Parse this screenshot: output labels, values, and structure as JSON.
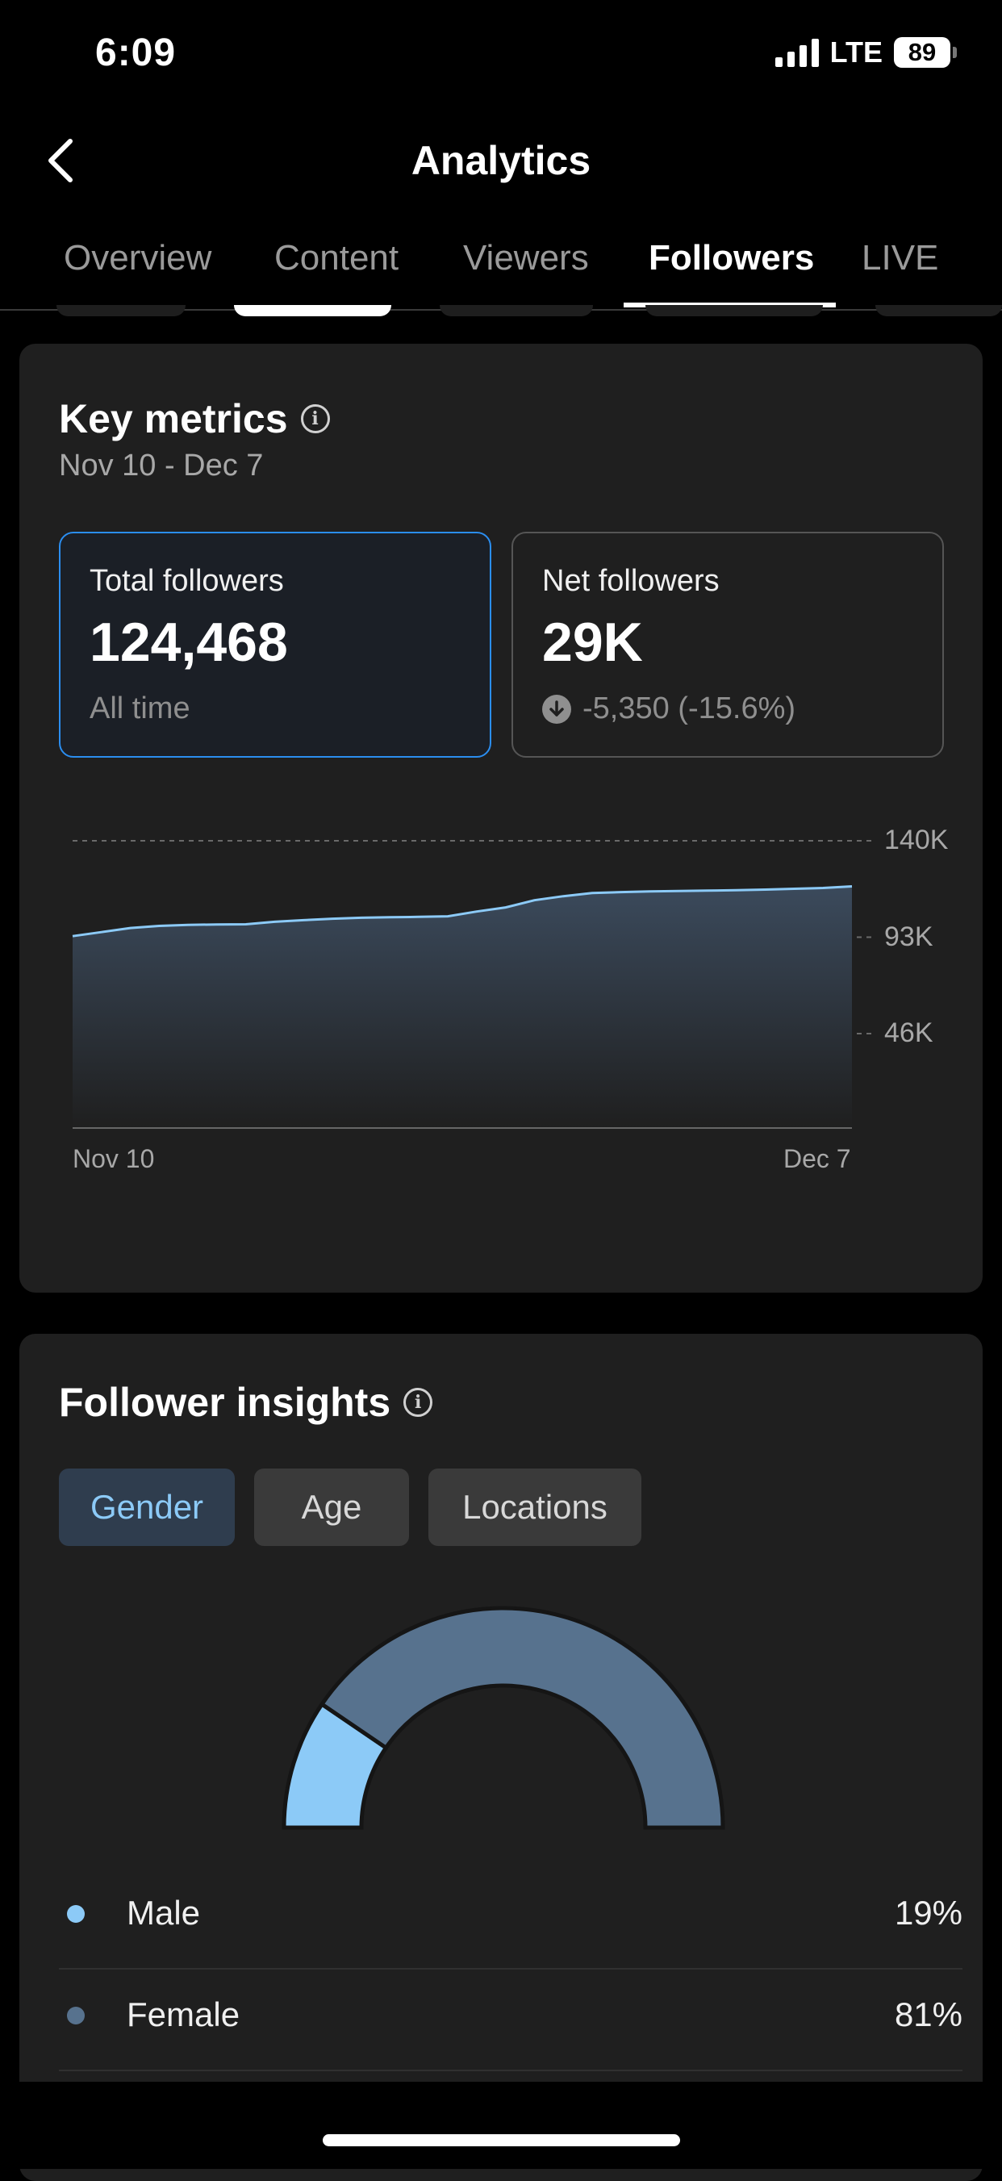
{
  "status_bar": {
    "time": "6:09",
    "network": "LTE",
    "battery": "89"
  },
  "header": {
    "title": "Analytics"
  },
  "tabs": [
    {
      "label": "Overview",
      "active": false
    },
    {
      "label": "Content",
      "active": false
    },
    {
      "label": "Viewers",
      "active": false
    },
    {
      "label": "Followers",
      "active": true
    },
    {
      "label": "LIVE",
      "active": false
    }
  ],
  "key_metrics": {
    "title": "Key metrics",
    "date_range": "Nov 10 - Dec 7",
    "total": {
      "label": "Total followers",
      "value": "124,468",
      "sub": "All time"
    },
    "net": {
      "label": "Net followers",
      "value": "29K",
      "change": "-5,350 (-15.6%)"
    }
  },
  "chart_data": {
    "type": "area",
    "title": "",
    "xlabel": "",
    "ylabel": "",
    "x_tick_labels": [
      "Nov 10",
      "Dec 7"
    ],
    "y_tick_labels": [
      "140K",
      "93K",
      "46K"
    ],
    "y_tick_values": [
      140000,
      93000,
      46000
    ],
    "ylim": [
      0,
      140000
    ],
    "grid": true,
    "series": [
      {
        "values": [
          93500,
          95500,
          97500,
          98500,
          99000,
          99200,
          99300,
          100500,
          101300,
          102000,
          102500,
          102700,
          102900,
          103200,
          105500,
          107500,
          111000,
          113000,
          114500,
          115000,
          115300,
          115500,
          115700,
          115900,
          116200,
          116600,
          117000,
          117800
        ]
      }
    ],
    "colors": {
      "line": "#8ccaf7",
      "fill_top": "#3b4a5c",
      "grid": "#6a6a6a"
    }
  },
  "follower_insights": {
    "title": "Follower insights",
    "filters": [
      {
        "label": "Gender",
        "active": true
      },
      {
        "label": "Age",
        "active": false
      },
      {
        "label": "Locations",
        "active": false
      }
    ],
    "gender": [
      {
        "name": "Male",
        "percent": "19%",
        "value": 19,
        "color": "#8ccaf7"
      },
      {
        "name": "Female",
        "percent": "81%",
        "value": 81,
        "color": "#57728e"
      }
    ]
  }
}
